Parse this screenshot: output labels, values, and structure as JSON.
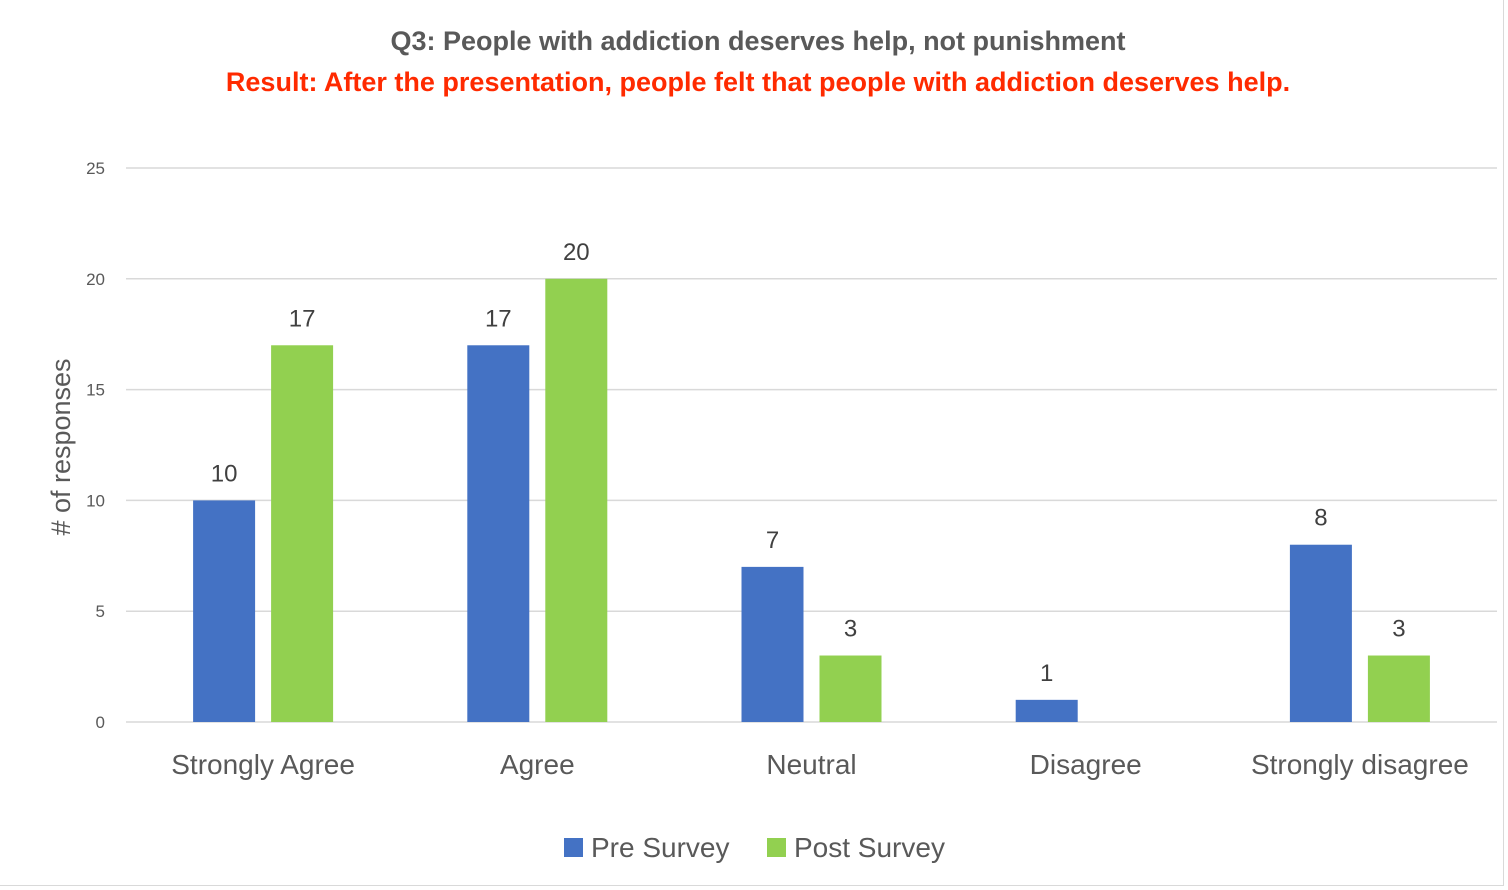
{
  "chart_data": {
    "type": "bar",
    "title": "Q3: People with addiction deserves help, not punishment",
    "subtitle": "Result: After the presentation, people felt that people with addiction deserves help.",
    "xlabel": "",
    "ylabel": "# of responses",
    "ylim": [
      0,
      25
    ],
    "yticks": [
      0,
      5,
      10,
      15,
      20,
      25
    ],
    "categories": [
      "Strongly Agree",
      "Agree",
      "Neutral",
      "Disagree",
      "Strongly disagree"
    ],
    "series": [
      {
        "name": "Pre Survey",
        "color": "#4472c4",
        "values": [
          10,
          17,
          7,
          1,
          8
        ]
      },
      {
        "name": "Post Survey",
        "color": "#92d050",
        "values": [
          17,
          20,
          3,
          0,
          3
        ]
      }
    ],
    "data_labels": [
      [
        "10",
        "17",
        "7",
        "1",
        "8"
      ],
      [
        "17",
        "20",
        "3",
        "",
        "3"
      ]
    ],
    "grid": true,
    "legend_position": "bottom",
    "colors": {
      "title": "#595959",
      "subtitle": "#ff2a00",
      "axis_text": "#595959",
      "gridline": "#d9d9d9"
    }
  }
}
